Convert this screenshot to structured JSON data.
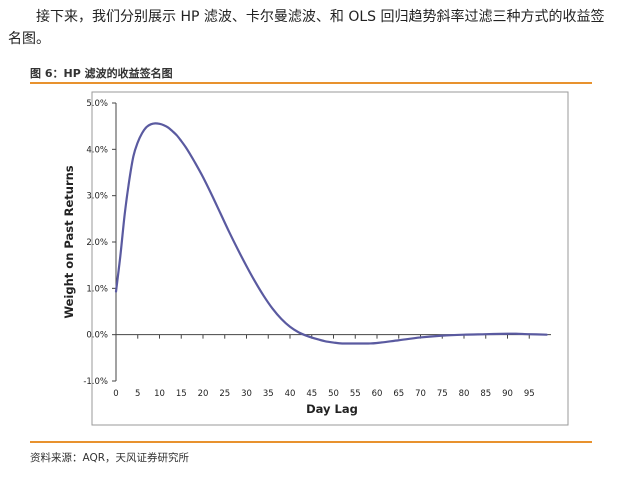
{
  "article": {
    "intro": "接下来，我们分别展示 HP 滤波、卡尔曼滤波、和 OLS 回归趋势斜率过滤三种方式的收益签名图。",
    "figure_title": "图 6：HP 滤波的收益签名图",
    "source": "资料来源：AQR，天风证券研究所"
  },
  "colors": {
    "accent_rule": "#e8922e",
    "series_line": "#5a5aa0"
  },
  "chart_data": {
    "type": "line",
    "title": "",
    "xlabel": "Day Lag",
    "ylabel": "Weight on Past Returns",
    "xlim": [
      0,
      100
    ],
    "ylim": [
      -0.01,
      0.05
    ],
    "x_ticks": [
      0,
      5,
      10,
      15,
      20,
      25,
      30,
      35,
      40,
      45,
      50,
      55,
      60,
      65,
      70,
      75,
      80,
      85,
      90,
      95
    ],
    "y_ticks": [
      -0.01,
      0,
      0.01,
      0.02,
      0.03,
      0.04,
      0.05
    ],
    "y_tick_labels": [
      "-1.0%",
      "0.0%",
      "1.0%",
      "2.0%",
      "3.0%",
      "4.0%",
      "5.0%"
    ],
    "grid": false,
    "legend": "none",
    "series": [
      {
        "x": [
          0,
          1,
          2,
          3,
          4,
          5,
          6,
          7,
          8,
          9,
          10,
          11,
          12,
          13,
          14,
          15,
          16,
          17,
          18,
          20,
          22,
          24,
          26,
          28,
          30,
          32,
          34,
          36,
          38,
          40,
          42,
          44,
          46,
          48,
          50,
          52,
          55,
          58,
          60,
          65,
          70,
          75,
          80,
          85,
          90,
          92,
          95,
          99
        ],
        "y": [
          0.0093,
          0.017,
          0.026,
          0.033,
          0.0385,
          0.0415,
          0.0435,
          0.0448,
          0.0454,
          0.0456,
          0.0455,
          0.0452,
          0.0447,
          0.0439,
          0.043,
          0.0418,
          0.0405,
          0.039,
          0.0374,
          0.034,
          0.0302,
          0.0262,
          0.0222,
          0.0184,
          0.0148,
          0.0114,
          0.0083,
          0.0056,
          0.0034,
          0.0017,
          0.0005,
          -0.0003,
          -0.0009,
          -0.0014,
          -0.0017,
          -0.0019,
          -0.0019,
          -0.0019,
          -0.0018,
          -0.0012,
          -0.0006,
          -0.0002,
          0.0,
          0.0001,
          0.0002,
          0.0002,
          0.0001,
          0.0
        ]
      }
    ]
  }
}
